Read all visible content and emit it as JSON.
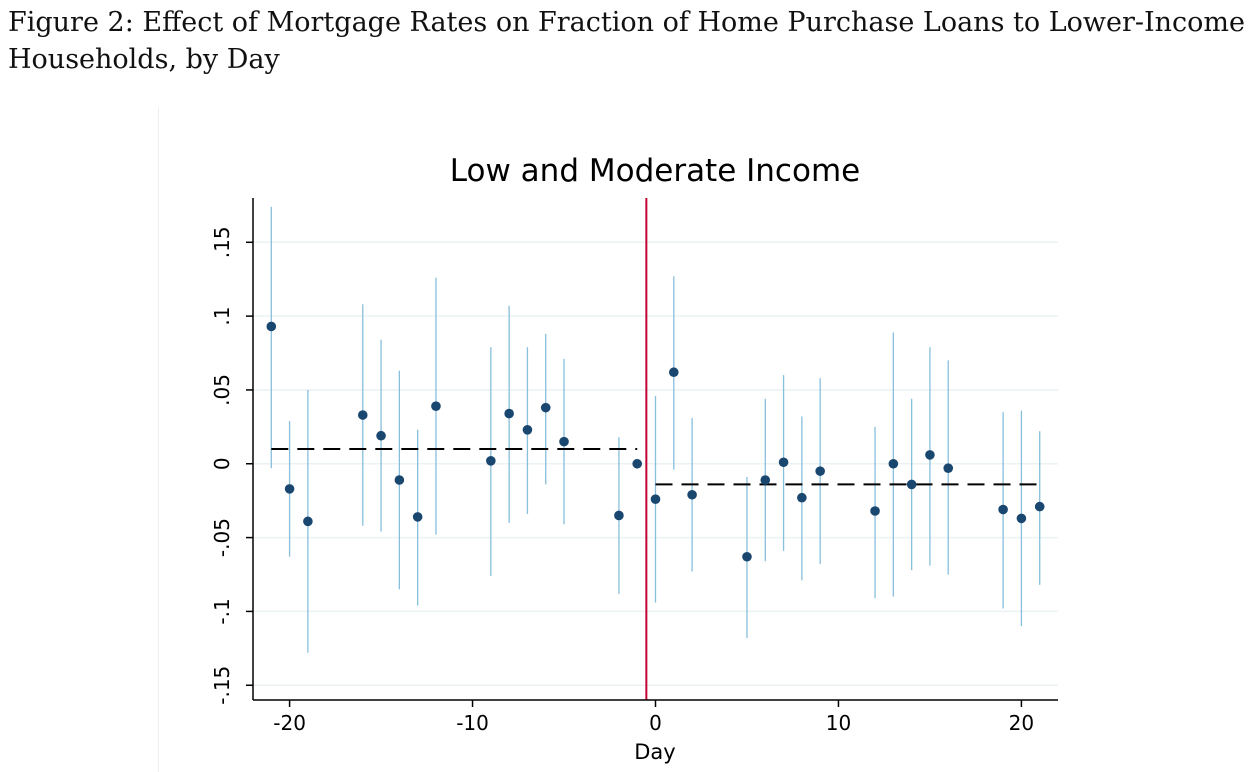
{
  "figure": {
    "caption": "Figure 2: Effect of Mortgage Rates on Fraction of Home Purchase Loans to Lower-Income Households, by Day"
  },
  "chart_data": {
    "type": "scatter",
    "title": "Low and Moderate Income",
    "xlabel": "Day",
    "ylabel": "",
    "xlim": [
      -22,
      22
    ],
    "ylim": [
      -0.16,
      0.18
    ],
    "xticks": [
      {
        "value": -20,
        "label": "-20"
      },
      {
        "value": -10,
        "label": "-10"
      },
      {
        "value": 0,
        "label": "0"
      },
      {
        "value": 10,
        "label": "10"
      },
      {
        "value": 20,
        "label": "20"
      }
    ],
    "yticks": [
      {
        "value": 0.15,
        "label": ".15"
      },
      {
        "value": 0.1,
        "label": ".1"
      },
      {
        "value": 0.05,
        "label": ".05"
      },
      {
        "value": 0,
        "label": "0"
      },
      {
        "value": -0.05,
        "label": "-.05"
      },
      {
        "value": -0.1,
        "label": "-.1"
      },
      {
        "value": -0.15,
        "label": "-.15"
      }
    ],
    "grid": true,
    "event_line_x": -0.5,
    "series": [
      {
        "points": [
          {
            "x": -21,
            "y": 0.093,
            "lo": -0.003,
            "hi": 0.174
          },
          {
            "x": -20,
            "y": -0.017,
            "lo": -0.063,
            "hi": 0.029
          },
          {
            "x": -19,
            "y": -0.039,
            "lo": -0.128,
            "hi": 0.05
          },
          {
            "x": -16,
            "y": 0.033,
            "lo": -0.042,
            "hi": 0.108
          },
          {
            "x": -15,
            "y": 0.019,
            "lo": -0.046,
            "hi": 0.084
          },
          {
            "x": -14,
            "y": -0.011,
            "lo": -0.085,
            "hi": 0.063
          },
          {
            "x": -13,
            "y": -0.036,
            "lo": -0.096,
            "hi": 0.023
          },
          {
            "x": -12,
            "y": 0.039,
            "lo": -0.048,
            "hi": 0.126
          },
          {
            "x": -9,
            "y": 0.002,
            "lo": -0.076,
            "hi": 0.079
          },
          {
            "x": -8,
            "y": 0.034,
            "lo": -0.04,
            "hi": 0.107
          },
          {
            "x": -7,
            "y": 0.023,
            "lo": -0.034,
            "hi": 0.079
          },
          {
            "x": -6,
            "y": 0.038,
            "lo": -0.014,
            "hi": 0.088
          },
          {
            "x": -5,
            "y": 0.015,
            "lo": -0.041,
            "hi": 0.071
          },
          {
            "x": -2,
            "y": -0.035,
            "lo": -0.088,
            "hi": 0.018
          },
          {
            "x": -1,
            "y": 0.0,
            "lo": 0.0,
            "hi": 0.0
          },
          {
            "x": 0,
            "y": -0.024,
            "lo": -0.094,
            "hi": 0.046
          },
          {
            "x": 1,
            "y": 0.062,
            "lo": -0.004,
            "hi": 0.127
          },
          {
            "x": 2,
            "y": -0.021,
            "lo": -0.073,
            "hi": 0.031
          },
          {
            "x": 5,
            "y": -0.063,
            "lo": -0.118,
            "hi": -0.009
          },
          {
            "x": 6,
            "y": -0.011,
            "lo": -0.066,
            "hi": 0.044
          },
          {
            "x": 7,
            "y": 0.001,
            "lo": -0.059,
            "hi": 0.06
          },
          {
            "x": 8,
            "y": -0.023,
            "lo": -0.079,
            "hi": 0.032
          },
          {
            "x": 9,
            "y": -0.005,
            "lo": -0.068,
            "hi": 0.058
          },
          {
            "x": 12,
            "y": -0.032,
            "lo": -0.091,
            "hi": 0.025
          },
          {
            "x": 13,
            "y": 0.0,
            "lo": -0.09,
            "hi": 0.089
          },
          {
            "x": 14,
            "y": -0.014,
            "lo": -0.072,
            "hi": 0.044
          },
          {
            "x": 15,
            "y": 0.006,
            "lo": -0.069,
            "hi": 0.079
          },
          {
            "x": 16,
            "y": -0.003,
            "lo": -0.075,
            "hi": 0.07
          },
          {
            "x": 19,
            "y": -0.031,
            "lo": -0.098,
            "hi": 0.035
          },
          {
            "x": 20,
            "y": -0.037,
            "lo": -0.11,
            "hi": 0.036
          },
          {
            "x": 21,
            "y": -0.029,
            "lo": -0.082,
            "hi": 0.022
          }
        ]
      }
    ],
    "averages": [
      {
        "x0": -21,
        "x1": -1,
        "y": 0.01
      },
      {
        "x0": 0,
        "x1": 21,
        "y": -0.014
      }
    ],
    "colors": {
      "point": "#1a476f",
      "ci": "#87bfdc",
      "event_line": "#c10534",
      "average_line": "#000000",
      "grid": "#eaf2f3",
      "axis": "#000000"
    }
  }
}
